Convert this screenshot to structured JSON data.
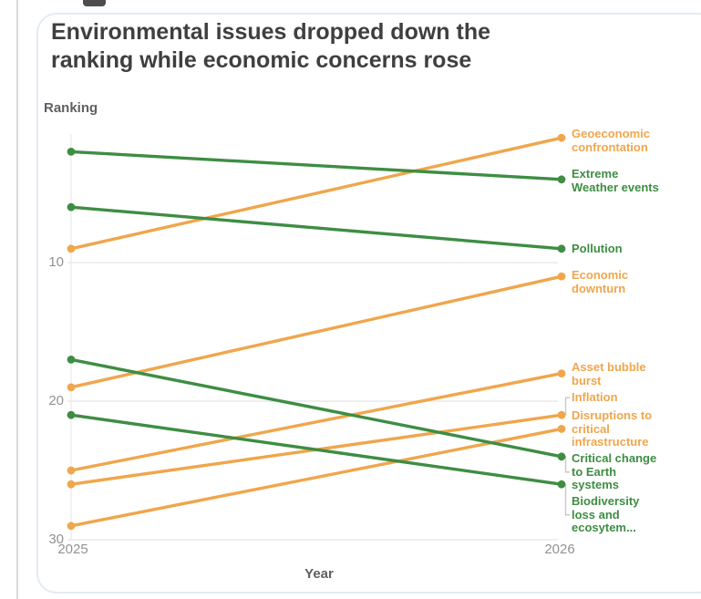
{
  "header": {
    "title": "Environmental issues dropped down the ranking while economic concerns rose",
    "title_lines": [
      "Environmental issues dropped down the",
      "ranking while economic concerns rose"
    ]
  },
  "colors": {
    "green": "#3e8d43",
    "orange": "#f0a64c",
    "title_text": "#3f3f3f",
    "axis_text": "#929292",
    "axis_title_text": "#5f5f5f",
    "gridline": "#e9e9e9",
    "bracket": "#c9c9c9",
    "card_border": "#e3ebf3"
  },
  "chart_data": {
    "type": "line",
    "subtype": "slope-bump-chart",
    "title": "Environmental issues dropped down the ranking while economic concerns rose",
    "xlabel": "Year",
    "ylabel": "Ranking",
    "x": [
      2025,
      2026
    ],
    "x_tick_labels": [
      "2025",
      "2026"
    ],
    "y_ticks": [
      10,
      20,
      30
    ],
    "y_axis_reversed": true,
    "ylim": [
      1,
      30
    ],
    "grid": "horizontal",
    "legend_position": "right-edge-labels",
    "series": [
      {
        "name": "Geoeconomic confrontation",
        "label_lines": [
          "Geoeconomic",
          "confrontation"
        ],
        "color": "#f0a64c",
        "values": [
          9,
          1
        ],
        "bracket": false
      },
      {
        "name": "Extreme Weather events",
        "label_lines": [
          "Extreme",
          "Weather events"
        ],
        "color": "#3e8d43",
        "values": [
          2,
          4
        ],
        "bracket": false
      },
      {
        "name": "Pollution",
        "label_lines": [
          "Pollution"
        ],
        "color": "#3e8d43",
        "values": [
          6,
          9
        ],
        "bracket": false
      },
      {
        "name": "Economic downturn",
        "label_lines": [
          "Economic",
          "downturn"
        ],
        "color": "#f0a64c",
        "values": [
          19,
          11
        ],
        "bracket": false
      },
      {
        "name": "Asset bubble burst",
        "label_lines": [
          "Asset bubble",
          "burst"
        ],
        "color": "#f0a64c",
        "values": [
          25,
          18
        ],
        "bracket": false
      },
      {
        "name": "Inflation",
        "label_lines": [
          "Inflation"
        ],
        "color": "#f0a64c",
        "values": [
          26,
          21
        ],
        "bracket": true
      },
      {
        "name": "Disruptions to critical infrastructure",
        "label_lines": [
          "Disruptions to",
          "critical",
          "infrastructure"
        ],
        "color": "#f0a64c",
        "values": [
          29,
          22
        ],
        "bracket": false
      },
      {
        "name": "Critical change to Earth systems",
        "label_lines": [
          "Critical change",
          "to Earth",
          "systems"
        ],
        "color": "#3e8d43",
        "values": [
          17,
          24
        ],
        "bracket": true
      },
      {
        "name": "Biodiversity loss and ecosytem...",
        "label_lines": [
          "Biodiversity",
          "loss and",
          "ecosytem..."
        ],
        "color": "#3e8d43",
        "values": [
          21,
          26
        ],
        "bracket": true
      }
    ]
  }
}
